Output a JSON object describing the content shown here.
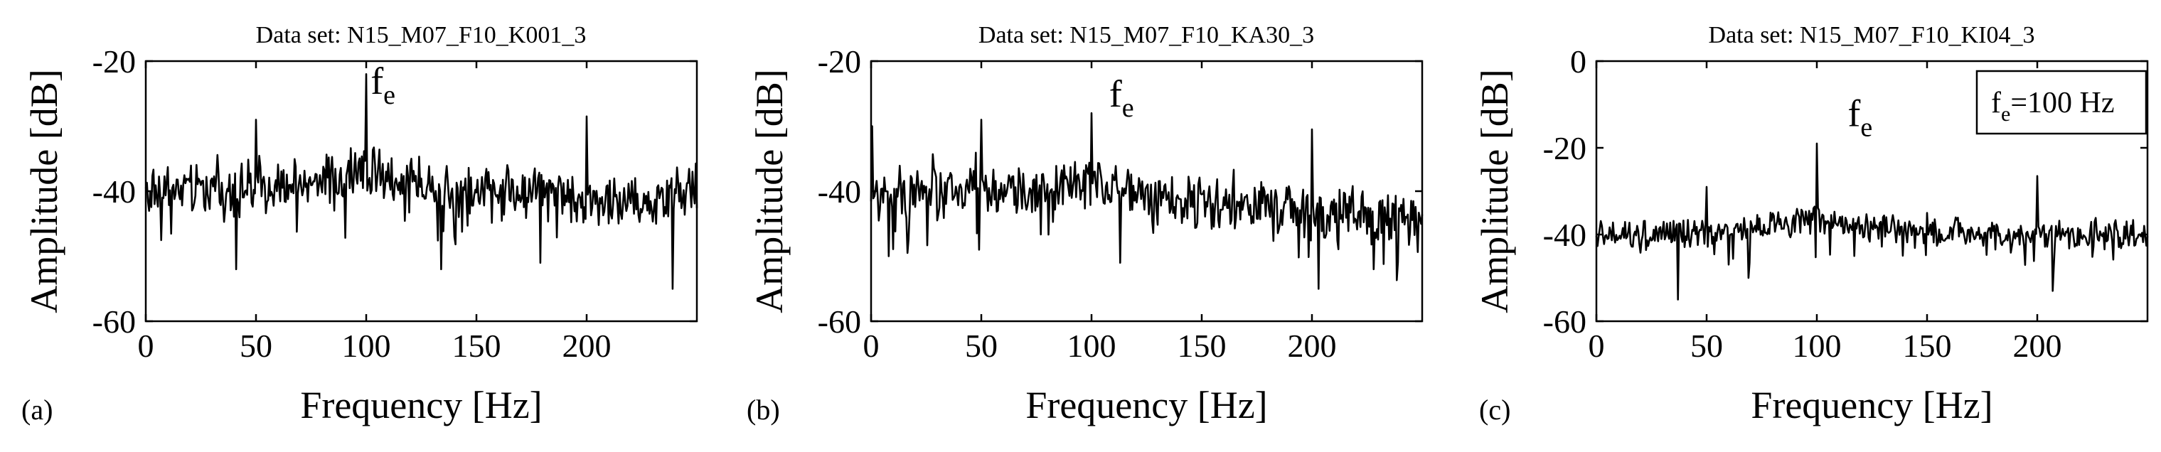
{
  "chart_data": [
    {
      "type": "line",
      "panel_label": "(a)",
      "title": "Data set: N15_M07_F10_K001_3",
      "xlabel": "Frequency [Hz]",
      "ylabel": "Amplitude [dB]",
      "xlim": [
        0,
        250
      ],
      "ylim": [
        -60,
        -20
      ],
      "xticks": [
        0,
        50,
        100,
        150,
        200
      ],
      "yticks": [
        -20,
        -40,
        -60
      ],
      "xtick_labels": [
        "0",
        "50",
        "100",
        "150",
        "200"
      ],
      "ytick_labels": [
        "-20",
        "-40",
        "-60"
      ],
      "grid": false,
      "annotation": {
        "base": "f",
        "sub": "e",
        "x": 102,
        "y": -25
      },
      "series": [
        {
          "name": "spectrum",
          "color": "#000000",
          "baseline": [
            [
              0,
              -40
            ],
            [
              80,
              -39
            ],
            [
              95,
              -37
            ],
            [
              105,
              -37.5
            ],
            [
              130,
              -39.5
            ],
            [
              170,
              -40
            ],
            [
              200,
              -41
            ],
            [
              230,
              -42
            ],
            [
              250,
              -39
            ]
          ],
          "noise": 3.2,
          "peaks": [
            {
              "x": 50,
              "y": -29
            },
            {
              "x": 100,
              "y": -22
            },
            {
              "x": 200,
              "y": -28.5
            },
            {
              "x": 41,
              "y": -52
            },
            {
              "x": 134,
              "y": -52
            },
            {
              "x": 179,
              "y": -51
            },
            {
              "x": 239,
              "y": -55
            },
            {
              "x": 248,
              "y": -37
            }
          ]
        }
      ]
    },
    {
      "type": "line",
      "panel_label": "(b)",
      "title": "Data set: N15_M07_F10_KA30_3",
      "xlabel": "Frequency [Hz]",
      "ylabel": "Amplitude [dB]",
      "xlim": [
        0,
        250
      ],
      "ylim": [
        -60,
        -20
      ],
      "xticks": [
        0,
        50,
        100,
        150,
        200
      ],
      "yticks": [
        -20,
        -40,
        -60
      ],
      "xtick_labels": [
        "0",
        "50",
        "100",
        "150",
        "200"
      ],
      "ytick_labels": [
        "-20",
        "-40",
        "-60"
      ],
      "grid": false,
      "annotation": {
        "base": "f",
        "sub": "e",
        "x": 108,
        "y": -27
      },
      "series": [
        {
          "name": "spectrum",
          "color": "#000000",
          "baseline": [
            [
              0,
              -40
            ],
            [
              80,
              -40
            ],
            [
              95,
              -38.5
            ],
            [
              105,
              -39
            ],
            [
              130,
              -41.5
            ],
            [
              170,
              -42.5
            ],
            [
              200,
              -43
            ],
            [
              230,
              -44
            ],
            [
              250,
              -44
            ]
          ],
          "noise": 3.2,
          "peaks": [
            {
              "x": 0.5,
              "y": -30
            },
            {
              "x": 50,
              "y": -29
            },
            {
              "x": 100,
              "y": -28
            },
            {
              "x": 200,
              "y": -30.5
            },
            {
              "x": 8,
              "y": -50
            },
            {
              "x": 49,
              "y": -49
            },
            {
              "x": 113,
              "y": -51
            },
            {
              "x": 203,
              "y": -55
            },
            {
              "x": 228,
              "y": -52
            }
          ]
        }
      ]
    },
    {
      "type": "line",
      "panel_label": "(c)",
      "title": "Data set: N15_M07_F10_KI04_3",
      "xlabel": "Frequency [Hz]",
      "ylabel": "Amplitude [dB]",
      "xlim": [
        0,
        250
      ],
      "ylim": [
        -60,
        0
      ],
      "xticks": [
        0,
        50,
        100,
        150,
        200
      ],
      "yticks": [
        0,
        -20,
        -40,
        -60
      ],
      "xtick_labels": [
        "0",
        "50",
        "100",
        "150",
        "200"
      ],
      "ytick_labels": [
        "0",
        "-20",
        "-40",
        "-60"
      ],
      "grid": false,
      "annotation": {
        "base": "f",
        "sub": "e",
        "x": 114,
        "y": -15
      },
      "legend": {
        "base": "f",
        "sub": "e",
        "text": "=100 Hz",
        "position": "top-right"
      },
      "series": [
        {
          "name": "spectrum",
          "color": "#000000",
          "baseline": [
            [
              0,
              -40
            ],
            [
              40,
              -40
            ],
            [
              70,
              -38.5
            ],
            [
              92,
              -37
            ],
            [
              100,
              -36
            ],
            [
              108,
              -37
            ],
            [
              130,
              -38.5
            ],
            [
              170,
              -39.5
            ],
            [
              200,
              -40
            ],
            [
              250,
              -40
            ]
          ],
          "noise": 2.6,
          "peaks": [
            {
              "x": 50,
              "y": -29
            },
            {
              "x": 100,
              "y": -19
            },
            {
              "x": 200,
              "y": -26.5
            },
            {
              "x": 150,
              "y": -35
            },
            {
              "x": 37,
              "y": -55
            },
            {
              "x": 207,
              "y": -53
            },
            {
              "x": 69,
              "y": -50
            }
          ]
        }
      ]
    }
  ]
}
